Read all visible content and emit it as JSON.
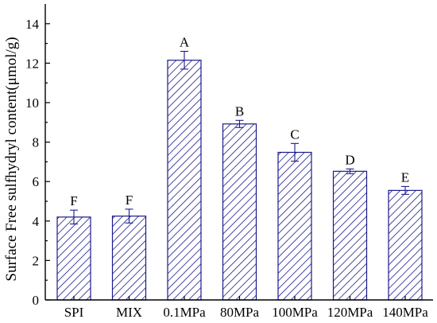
{
  "chart_data": {
    "type": "bar",
    "title": "",
    "xlabel": "",
    "ylabel": "Surface Free sulfhydryl content(μmol/g)",
    "categories": [
      "SPI",
      "MIX",
      "0.1MPa",
      "80MPa",
      "100MPa",
      "120MPa",
      "140MPa"
    ],
    "values": [
      4.2,
      4.25,
      12.15,
      8.92,
      7.48,
      6.52,
      5.55
    ],
    "errors": [
      0.35,
      0.35,
      0.45,
      0.18,
      0.45,
      0.12,
      0.2
    ],
    "significance_labels": [
      "F",
      "F",
      "A",
      "B",
      "C",
      "D",
      "E"
    ],
    "ylim": [
      0,
      15
    ],
    "yticks": [
      0,
      2,
      4,
      6,
      8,
      10,
      12,
      14
    ],
    "bar_fill": "diagonal hatch",
    "bar_color": "#1a1a8c",
    "grid": false,
    "legend": "none"
  }
}
